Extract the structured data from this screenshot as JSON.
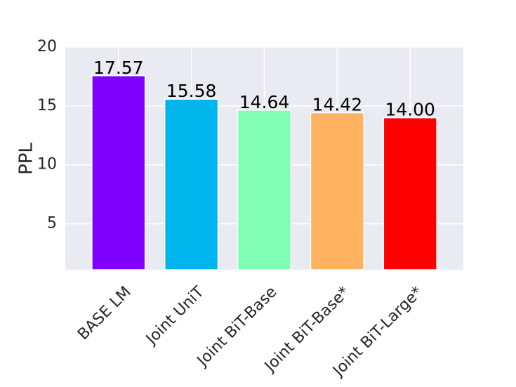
{
  "chart_data": {
    "type": "bar",
    "ylabel": "PPL",
    "categories": [
      "BASE LM",
      "Joint UniT",
      "Joint BiT-Base",
      "Joint BiT-Base*",
      "Joint BiT-Large*"
    ],
    "values": [
      17.57,
      15.58,
      14.64,
      14.42,
      14.0
    ],
    "value_labels": [
      "17.57",
      "15.58",
      "14.64",
      "14.42",
      "14.00"
    ],
    "colors": [
      "#8000ff",
      "#00b4ec",
      "#80ffb4",
      "#ffb360",
      "#ff0000"
    ],
    "ylim": [
      1.1,
      20
    ],
    "yticks": [
      5,
      10,
      15,
      20
    ],
    "grid": true
  }
}
